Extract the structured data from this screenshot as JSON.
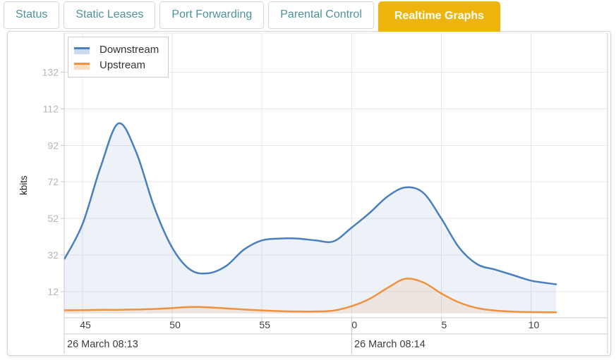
{
  "tabs": {
    "items": [
      {
        "label": "Status",
        "active": false
      },
      {
        "label": "Static Leases",
        "active": false
      },
      {
        "label": "Port Forwarding",
        "active": false
      },
      {
        "label": "Parental Control",
        "active": false
      },
      {
        "label": "Realtime Graphs",
        "active": true
      }
    ]
  },
  "legend": {
    "items": [
      {
        "label": "Downstream",
        "color": "#4a7fbe",
        "fill": "#ccdaef"
      },
      {
        "label": "Upstream",
        "color": "#f0913e",
        "fill": "#fbdcc0"
      }
    ]
  },
  "colors": {
    "active_tab": "#edb50c",
    "tab_text": "#4e929a",
    "downstream": "#4a7fbe",
    "upstream": "#f0913e",
    "grid": "#e8e8e8",
    "axis_border": "#c9c9c9",
    "x_label_text": "#3d3d3d",
    "y_label_text": "#b5b5b5"
  },
  "chart_data": {
    "type": "area",
    "title": "",
    "xlabel": "",
    "ylabel": "kbits",
    "grid": true,
    "legend_position": "top-left",
    "ylim": [
      0,
      153
    ],
    "y_ticks": [
      12,
      32,
      52,
      72,
      92,
      112,
      132
    ],
    "x_ticks": [
      {
        "t": 45,
        "label": "45"
      },
      {
        "t": 50,
        "label": "50"
      },
      {
        "t": 55,
        "label": "55"
      },
      {
        "t": 60,
        "label": "0"
      },
      {
        "t": 65,
        "label": "5"
      },
      {
        "t": 70,
        "label": "10"
      }
    ],
    "x_range_seconds": [
      44,
      71.4
    ],
    "date_labels": [
      {
        "text": "26 March 08:13"
      },
      {
        "text": "26 March 08:14"
      }
    ],
    "x": [
      44,
      45,
      46,
      47,
      48,
      49,
      50,
      51,
      52,
      53,
      54,
      55,
      56,
      57,
      58,
      59,
      60,
      61,
      62,
      63,
      64,
      65,
      66,
      67,
      68,
      69,
      70,
      71,
      71.4
    ],
    "series": [
      {
        "name": "Downstream",
        "color": "#4a7fbe",
        "fill_rgba": "rgba(74,127,190,0.10)",
        "values": [
          30,
          49,
          80,
          104,
          88,
          58,
          36,
          24,
          22,
          26,
          35,
          40,
          41,
          41,
          40,
          39.5,
          47,
          55,
          64,
          69,
          66,
          52,
          36,
          27,
          24,
          21,
          18,
          16.5,
          16
        ]
      },
      {
        "name": "Upstream",
        "color": "#f0913e",
        "fill_rgba": "rgba(240,145,62,0.13)",
        "values": [
          1.8,
          1.8,
          2,
          2,
          2.2,
          2.5,
          3,
          3.6,
          3.4,
          2.8,
          2.2,
          1.7,
          1.3,
          1.1,
          1.1,
          1.6,
          4,
          8,
          14,
          19,
          17,
          11,
          6,
          3,
          1.6,
          1,
          0.8,
          0.7,
          0.7
        ]
      }
    ]
  }
}
